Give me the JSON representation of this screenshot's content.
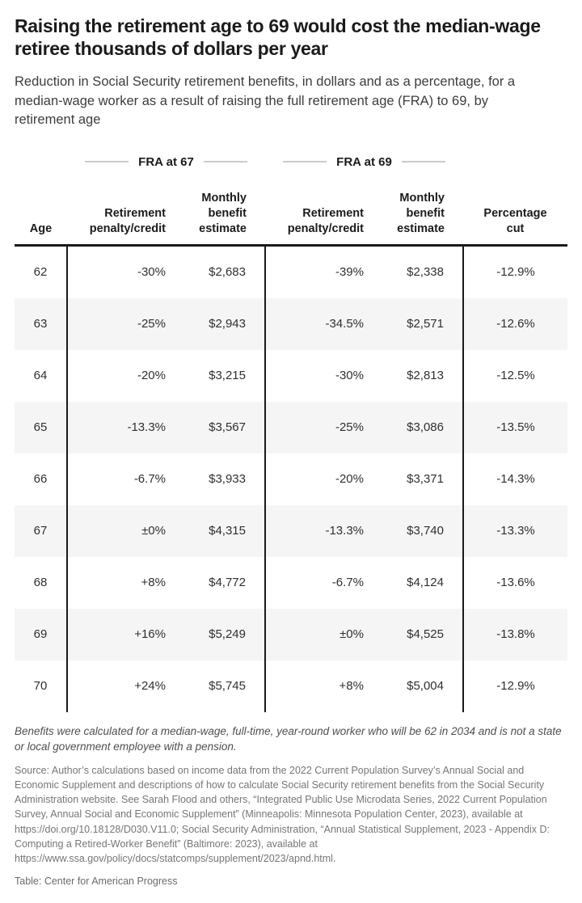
{
  "header": {
    "title": "Raising the retirement age to 69 would cost the median-wage retiree thousands of dollars per year",
    "subtitle": "Reduction in Social Security retirement benefits, in dollars and as a percentage, for a median-wage worker as a result of raising the full retirement age (FRA) to 69, by retirement age"
  },
  "chart_data": {
    "type": "table",
    "group_headers": [
      "FRA at 67",
      "FRA at 69"
    ],
    "columns": [
      "Age",
      "Retirement penalty/credit",
      "Monthly benefit estimate",
      "Retirement penalty/credit",
      "Monthly benefit estimate",
      "Percentage cut"
    ],
    "rows": [
      [
        "62",
        "-30%",
        "$2,683",
        "-39%",
        "$2,338",
        "-12.9%"
      ],
      [
        "63",
        "-25%",
        "$2,943",
        "-34.5%",
        "$2,571",
        "-12.6%"
      ],
      [
        "64",
        "-20%",
        "$3,215",
        "-30%",
        "$2,813",
        "-12.5%"
      ],
      [
        "65",
        "-13.3%",
        "$3,567",
        "-25%",
        "$3,086",
        "-13.5%"
      ],
      [
        "66",
        "-6.7%",
        "$3,933",
        "-20%",
        "$3,371",
        "-14.3%"
      ],
      [
        "67",
        "±0%",
        "$4,315",
        "-13.3%",
        "$3,740",
        "-13.3%"
      ],
      [
        "68",
        "+8%",
        "$4,772",
        "-6.7%",
        "$4,124",
        "-13.6%"
      ],
      [
        "69",
        "+16%",
        "$5,249",
        "±0%",
        "$4,525",
        "-13.8%"
      ],
      [
        "70",
        "+24%",
        "$5,745",
        "+8%",
        "$5,004",
        "-12.9%"
      ]
    ]
  },
  "footer": {
    "note": "Benefits were calculated for a median-wage, full-time, year-round worker who will be 62 in 2034 and is not a state or local government employee with a pension.",
    "source": "Source: Author’s calculations based on income data from the 2022 Current Population Survey’s Annual Social and Economic Supplement and descriptions of how to calculate Social Security retirement benefits from the Social Security Administration website. See Sarah Flood and others, “Integrated Public Use Microdata Series, 2022 Current Population Survey, Annual Social and Economic Supplement” (Minneapolis: Minnesota Population Center, 2023), available at https://doi.org/10.18128/D030.V11.0; Social Security Administration, “Annual Statistical Supplement, 2023 - Appendix D: Computing a Retired-Worker Benefit” (Baltimore: 2023), available at https://www.ssa.gov/policy/docs/statcomps/supplement/2023/apnd.html.",
    "credit": "Table: Center for American Progress"
  }
}
